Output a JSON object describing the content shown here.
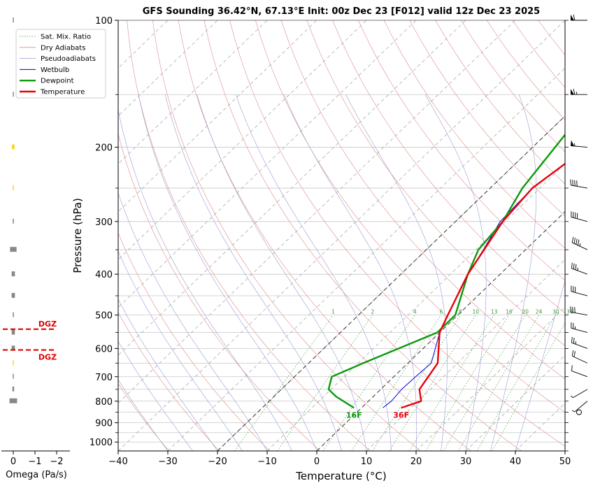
{
  "chart_data": {
    "type": "skew-t sounding",
    "title": "GFS Sounding 36.42°N, 67.13°E Init: 00z Dec 23 [F012] valid 12z Dec 23 2025",
    "xlabel": "Temperature (°C)",
    "ylabel": "Pressure (hPa)",
    "xlim": [
      -40,
      50
    ],
    "ylim": [
      1050,
      100
    ],
    "pressure_scale": "log",
    "grid": true,
    "legend_position": "top-left",
    "x_ticks": [
      "−40",
      "−30",
      "−20",
      "−10",
      "0",
      "10",
      "20",
      "30",
      "40",
      "50"
    ],
    "y_ticks": [
      "100",
      "200",
      "300",
      "400",
      "500",
      "600",
      "700",
      "800",
      "900",
      "1000"
    ],
    "legend": [
      "Sat. Mix. Ratio",
      "Dry Adiabats",
      "Pseudoadiabats",
      "Wetbulb",
      "Dewpoint",
      "Temperature"
    ],
    "colors": {
      "temperature": "#e8000b",
      "dewpoint": "#0a9a0a",
      "wetbulb": "#0000e0",
      "dry_adiabats": "#e08a8a",
      "pseudoadiabats": "#9a9ad8",
      "mixing_ratio": "#3a9a3a",
      "dgz": "#e00000"
    },
    "temperature": {
      "name": "Temperature",
      "pressure": [
        830,
        800,
        750,
        650,
        550,
        500,
        400,
        300,
        250,
        200,
        150,
        100
      ],
      "temp_c": [
        8,
        10.6,
        7.8,
        6,
        0,
        -2,
        -6.5,
        -10.5,
        -11.5,
        -9,
        -4,
        -5
      ]
    },
    "dewpoint": {
      "name": "Dewpoint",
      "pressure": [
        830,
        780,
        750,
        700,
        650,
        550,
        500,
        400,
        350,
        300,
        250,
        150,
        100
      ],
      "temp_c": [
        -1.5,
        -7.5,
        -10.5,
        -12.5,
        -9,
        -0.5,
        -0.5,
        -6.5,
        -9.5,
        -10.5,
        -13.5,
        -18,
        -7
      ]
    },
    "wetbulb": {
      "name": "Wetbulb",
      "pressure": [
        830,
        800,
        750,
        700,
        650,
        550,
        500,
        400,
        350,
        300,
        250,
        200,
        150,
        100
      ],
      "temp_c": [
        4.3,
        4.6,
        4.2,
        4.4,
        4.7,
        0,
        -2,
        -6.5,
        -8.5,
        -11,
        -11.5,
        -9,
        -4,
        -5
      ]
    },
    "mixing_ratio_labels": [
      "1",
      "2",
      "4",
      "6",
      "8",
      "10",
      "13",
      "16",
      "20",
      "24",
      "30",
      "36"
    ],
    "surface_labels": {
      "temperature": "36F",
      "dewpoint": "16F"
    },
    "dgz": {
      "label": "DGZ",
      "pressure_top": 540,
      "pressure_bottom": 605
    },
    "omega": {
      "xlabel": "Omega (Pa/s)",
      "x_ticks": [
        "0",
        "−1",
        "−2"
      ],
      "pressure": [
        100,
        150,
        200,
        250,
        300,
        350,
        400,
        450,
        500,
        550,
        600,
        650,
        700,
        750,
        800
      ],
      "values": [
        -0.02,
        -0.02,
        -0.12,
        -0.05,
        -0.05,
        -0.3,
        -0.15,
        -0.15,
        -0.05,
        -0.15,
        -0.15,
        -0.03,
        -0.02,
        -0.08,
        -0.35
      ],
      "colors": [
        "#888888",
        "#888888",
        "#ffd21a",
        "#ffd21a",
        "#888888",
        "#888888",
        "#888888",
        "#888888",
        "#888888",
        "#888888",
        "#888888",
        "#ffd21a",
        "#888888",
        "#888888",
        "#888888"
      ]
    },
    "wind_barbs": [
      {
        "pressure": 100,
        "direction": 270,
        "speed_kt": 60
      },
      {
        "pressure": 150,
        "direction": 270,
        "speed_kt": 65
      },
      {
        "pressure": 200,
        "direction": 275,
        "speed_kt": 55
      },
      {
        "pressure": 250,
        "direction": 280,
        "speed_kt": 40
      },
      {
        "pressure": 300,
        "direction": 285,
        "speed_kt": 40
      },
      {
        "pressure": 350,
        "direction": 295,
        "speed_kt": 45
      },
      {
        "pressure": 400,
        "direction": 290,
        "speed_kt": 35
      },
      {
        "pressure": 450,
        "direction": 285,
        "speed_kt": 30
      },
      {
        "pressure": 500,
        "direction": 280,
        "speed_kt": 30
      },
      {
        "pressure": 550,
        "direction": 285,
        "speed_kt": 25
      },
      {
        "pressure": 600,
        "direction": 290,
        "speed_kt": 25
      },
      {
        "pressure": 650,
        "direction": 295,
        "speed_kt": 20
      },
      {
        "pressure": 700,
        "direction": 290,
        "speed_kt": 10
      },
      {
        "pressure": 750,
        "direction": 240,
        "speed_kt": 5
      },
      {
        "pressure": 800,
        "direction": 230,
        "speed_kt": 5
      },
      {
        "pressure": 850,
        "direction": 0,
        "speed_kt": 0
      }
    ]
  }
}
